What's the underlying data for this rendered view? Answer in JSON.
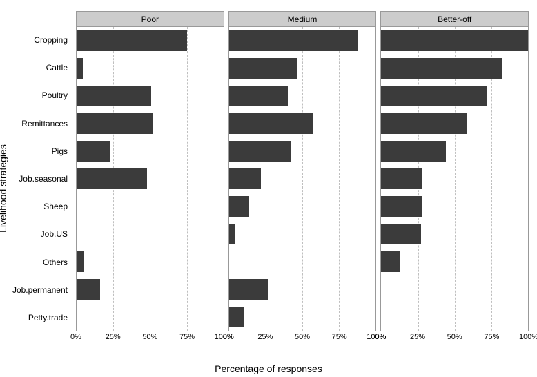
{
  "axes": {
    "y_title": "Livelihood strategies",
    "x_title": "Percentage of responses",
    "categories": [
      "Cropping",
      "Cattle",
      "Poultry",
      "Remittances",
      "Pigs",
      "Job.seasonal",
      "Sheep",
      "Job.US",
      "Others",
      "Job.permanent",
      "Petty.trade"
    ],
    "x_ticks": [
      0,
      25,
      50,
      75,
      100
    ],
    "x_tick_labels": [
      "0%",
      "25%",
      "50%",
      "75%",
      "100%"
    ],
    "xlim": [
      0,
      100
    ]
  },
  "facets": [
    {
      "label": "Poor",
      "values": {
        "Cropping": 75,
        "Cattle": 4,
        "Poultry": 51,
        "Remittances": 52,
        "Pigs": 23,
        "Job.seasonal": 48,
        "Sheep": 0,
        "Job.US": 0,
        "Others": 5,
        "Job.permanent": 16,
        "Petty.trade": 0
      }
    },
    {
      "label": "Medium",
      "values": {
        "Cropping": 88,
        "Cattle": 46,
        "Poultry": 40,
        "Remittances": 57,
        "Pigs": 42,
        "Job.seasonal": 22,
        "Sheep": 14,
        "Job.US": 4,
        "Others": 0,
        "Job.permanent": 27,
        "Petty.trade": 10
      }
    },
    {
      "label": "Better-off",
      "values": {
        "Cropping": 100,
        "Cattle": 82,
        "Poultry": 72,
        "Remittances": 58,
        "Pigs": 44,
        "Job.seasonal": 28,
        "Sheep": 28,
        "Job.US": 27,
        "Others": 13,
        "Job.permanent": 0,
        "Petty.trade": 0
      }
    }
  ],
  "style": {
    "bar_color": "#3b3b3b",
    "grid_color": "#bfbfbf",
    "background_color": "#ffffff",
    "strip_background": "#cccccc",
    "label_fontsize": 12,
    "title_fontsize": 14,
    "tick_fontsize": 11,
    "n_rows": 11,
    "row_fill": 0.76
  }
}
